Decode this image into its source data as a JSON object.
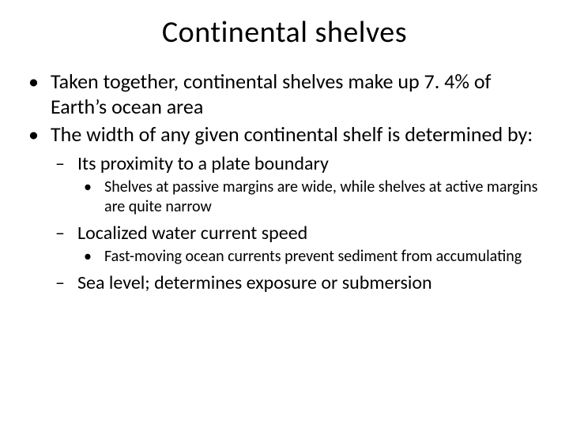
{
  "title": "Continental shelves",
  "bullets": {
    "b1": "Taken together, continental shelves make up 7. 4% of Earth’s ocean area",
    "b2": "The width of any given continental shelf is determined by:",
    "sub1": "Its proximity to a plate boundary",
    "sub1_detail": "Shelves at passive margins are wide, while shelves at active margins are quite narrow",
    "sub2": "Localized water current speed",
    "sub2_detail": "Fast-moving ocean currents prevent sediment from accumulating",
    "sub3": "Sea level; determines exposure or submersion"
  },
  "colors": {
    "background": "#ffffff",
    "text": "#000000"
  },
  "typography": {
    "title_fontsize": 38,
    "level1_fontsize": 26,
    "level2_fontsize": 24,
    "level3_fontsize": 20,
    "font_family": "Calibri"
  }
}
